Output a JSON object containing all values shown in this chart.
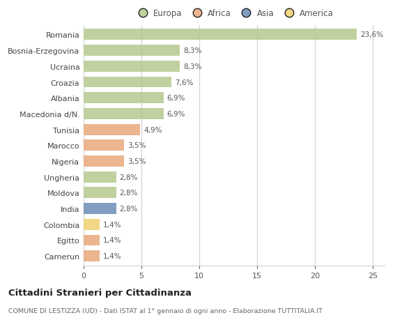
{
  "categories": [
    "Romania",
    "Bosnia-Erzegovina",
    "Ucraina",
    "Croazia",
    "Albania",
    "Macedonia d/N.",
    "Tunisia",
    "Marocco",
    "Nigeria",
    "Ungheria",
    "Moldova",
    "India",
    "Colombia",
    "Egitto",
    "Camerun"
  ],
  "values": [
    23.6,
    8.3,
    8.3,
    7.6,
    6.9,
    6.9,
    4.9,
    3.5,
    3.5,
    2.8,
    2.8,
    2.8,
    1.4,
    1.4,
    1.4
  ],
  "labels": [
    "23,6%",
    "8,3%",
    "8,3%",
    "7,6%",
    "6,9%",
    "6,9%",
    "4,9%",
    "3,5%",
    "3,5%",
    "2,8%",
    "2,8%",
    "2,8%",
    "1,4%",
    "1,4%",
    "1,4%"
  ],
  "colors": [
    "#b5c98e",
    "#b5c98e",
    "#b5c98e",
    "#b5c98e",
    "#b5c98e",
    "#b5c98e",
    "#e8a87c",
    "#e8a87c",
    "#e8a87c",
    "#b5c98e",
    "#b5c98e",
    "#6b8db5",
    "#f0d070",
    "#e8a87c",
    "#e8a87c"
  ],
  "continent_colors": {
    "Europa": "#b5c98e",
    "Africa": "#e8a87c",
    "Asia": "#6b8db5",
    "America": "#f0d070"
  },
  "legend_labels": [
    "Europa",
    "Africa",
    "Asia",
    "America"
  ],
  "title": "Cittadini Stranieri per Cittadinanza",
  "subtitle": "COMUNE DI LESTIZZA (UD) - Dati ISTAT al 1° gennaio di ogni anno - Elaborazione TUTTITALIA.IT",
  "xlim": [
    0,
    26
  ],
  "xticks": [
    0,
    5,
    10,
    15,
    20,
    25
  ],
  "background_color": "#ffffff",
  "grid_color": "#d0d0d0",
  "bar_height": 0.7,
  "figsize": [
    6.0,
    4.6
  ],
  "dpi": 100
}
